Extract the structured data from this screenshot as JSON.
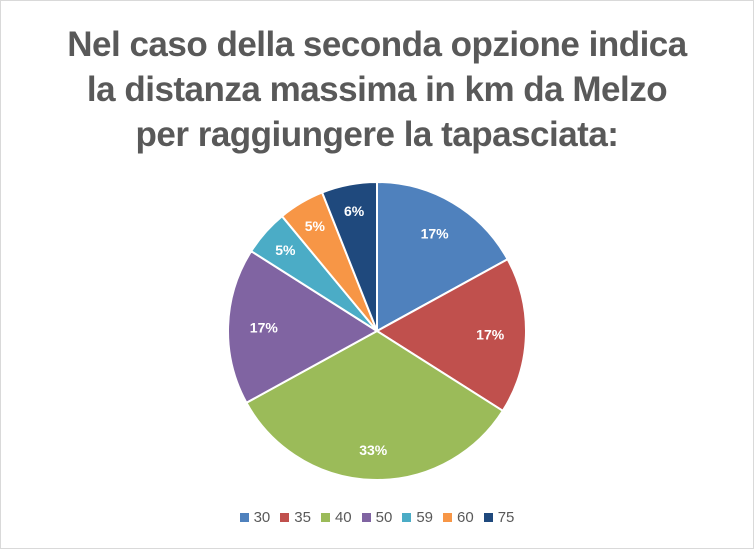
{
  "chart_data": {
    "type": "pie",
    "title_lines": [
      "Nel caso della seconda opzione indica",
      "la distanza massima in km da Melzo",
      "per raggiungere la tapasciata:"
    ],
    "categories": [
      "30",
      "35",
      "40",
      "50",
      "59",
      "60",
      "75"
    ],
    "values": [
      17,
      17,
      33,
      17,
      5,
      5,
      6
    ],
    "data_labels": [
      "17%",
      "17%",
      "33%",
      "17%",
      "5%",
      "5%",
      "6%"
    ],
    "colors": [
      "#4f81bd",
      "#c0504d",
      "#9bbb59",
      "#8064a2",
      "#4bacc6",
      "#f79646",
      "#1f497d"
    ],
    "start_angle_deg": 0,
    "direction": "clockwise",
    "legend_position": "bottom"
  }
}
